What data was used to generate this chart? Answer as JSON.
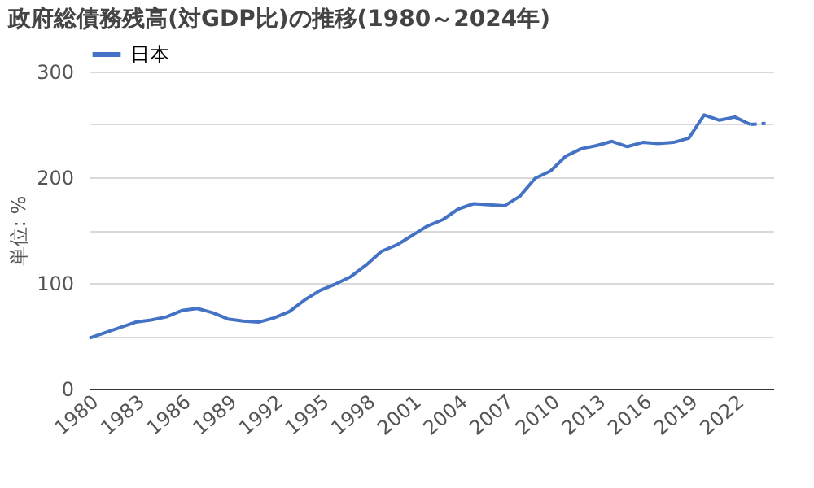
{
  "chart_data": {
    "type": "line",
    "title": "政府総債務残高(対GDP比)の推移(1980～2024年)",
    "ylabel": "単位: %",
    "series": [
      {
        "name": "日本",
        "color": "#4472c4",
        "line_style": "solid",
        "x": [
          1980,
          1981,
          1982,
          1983,
          1984,
          1985,
          1986,
          1987,
          1988,
          1989,
          1990,
          1991,
          1992,
          1993,
          1994,
          1995,
          1996,
          1997,
          1998,
          1999,
          2000,
          2001,
          2002,
          2003,
          2004,
          2005,
          2006,
          2007,
          2008,
          2009,
          2010,
          2011,
          2012,
          2013,
          2014,
          2015,
          2016,
          2017,
          2018,
          2019,
          2020,
          2021,
          2022,
          2023
        ],
        "values": [
          48,
          53,
          58,
          63,
          65,
          68,
          74,
          76,
          72,
          66,
          64,
          63,
          67,
          73,
          84,
          93,
          99,
          106,
          117,
          130,
          136,
          145,
          154,
          160,
          170,
          175,
          174,
          173,
          182,
          199,
          206,
          220,
          227,
          230,
          234,
          229,
          233,
          232,
          233,
          237,
          259,
          254,
          257,
          250
        ]
      },
      {
        "color": "#4472c4",
        "line_style": "dashed",
        "x": [
          2023,
          2024
        ],
        "values": [
          250,
          251
        ]
      }
    ],
    "xlim": [
      1980,
      2024.5
    ],
    "xticks": [
      1980,
      1983,
      1986,
      1989,
      1992,
      1995,
      1998,
      2001,
      2004,
      2007,
      2010,
      2013,
      2016,
      2019,
      2022
    ],
    "ylim": [
      0,
      300
    ],
    "yticks": [
      0,
      {
        "value": 50,
        "label": null
      },
      100,
      {
        "value": 150,
        "label": null
      },
      200,
      {
        "value": 250,
        "label": null
      },
      300
    ],
    "grid": "y",
    "legend": "top left"
  }
}
